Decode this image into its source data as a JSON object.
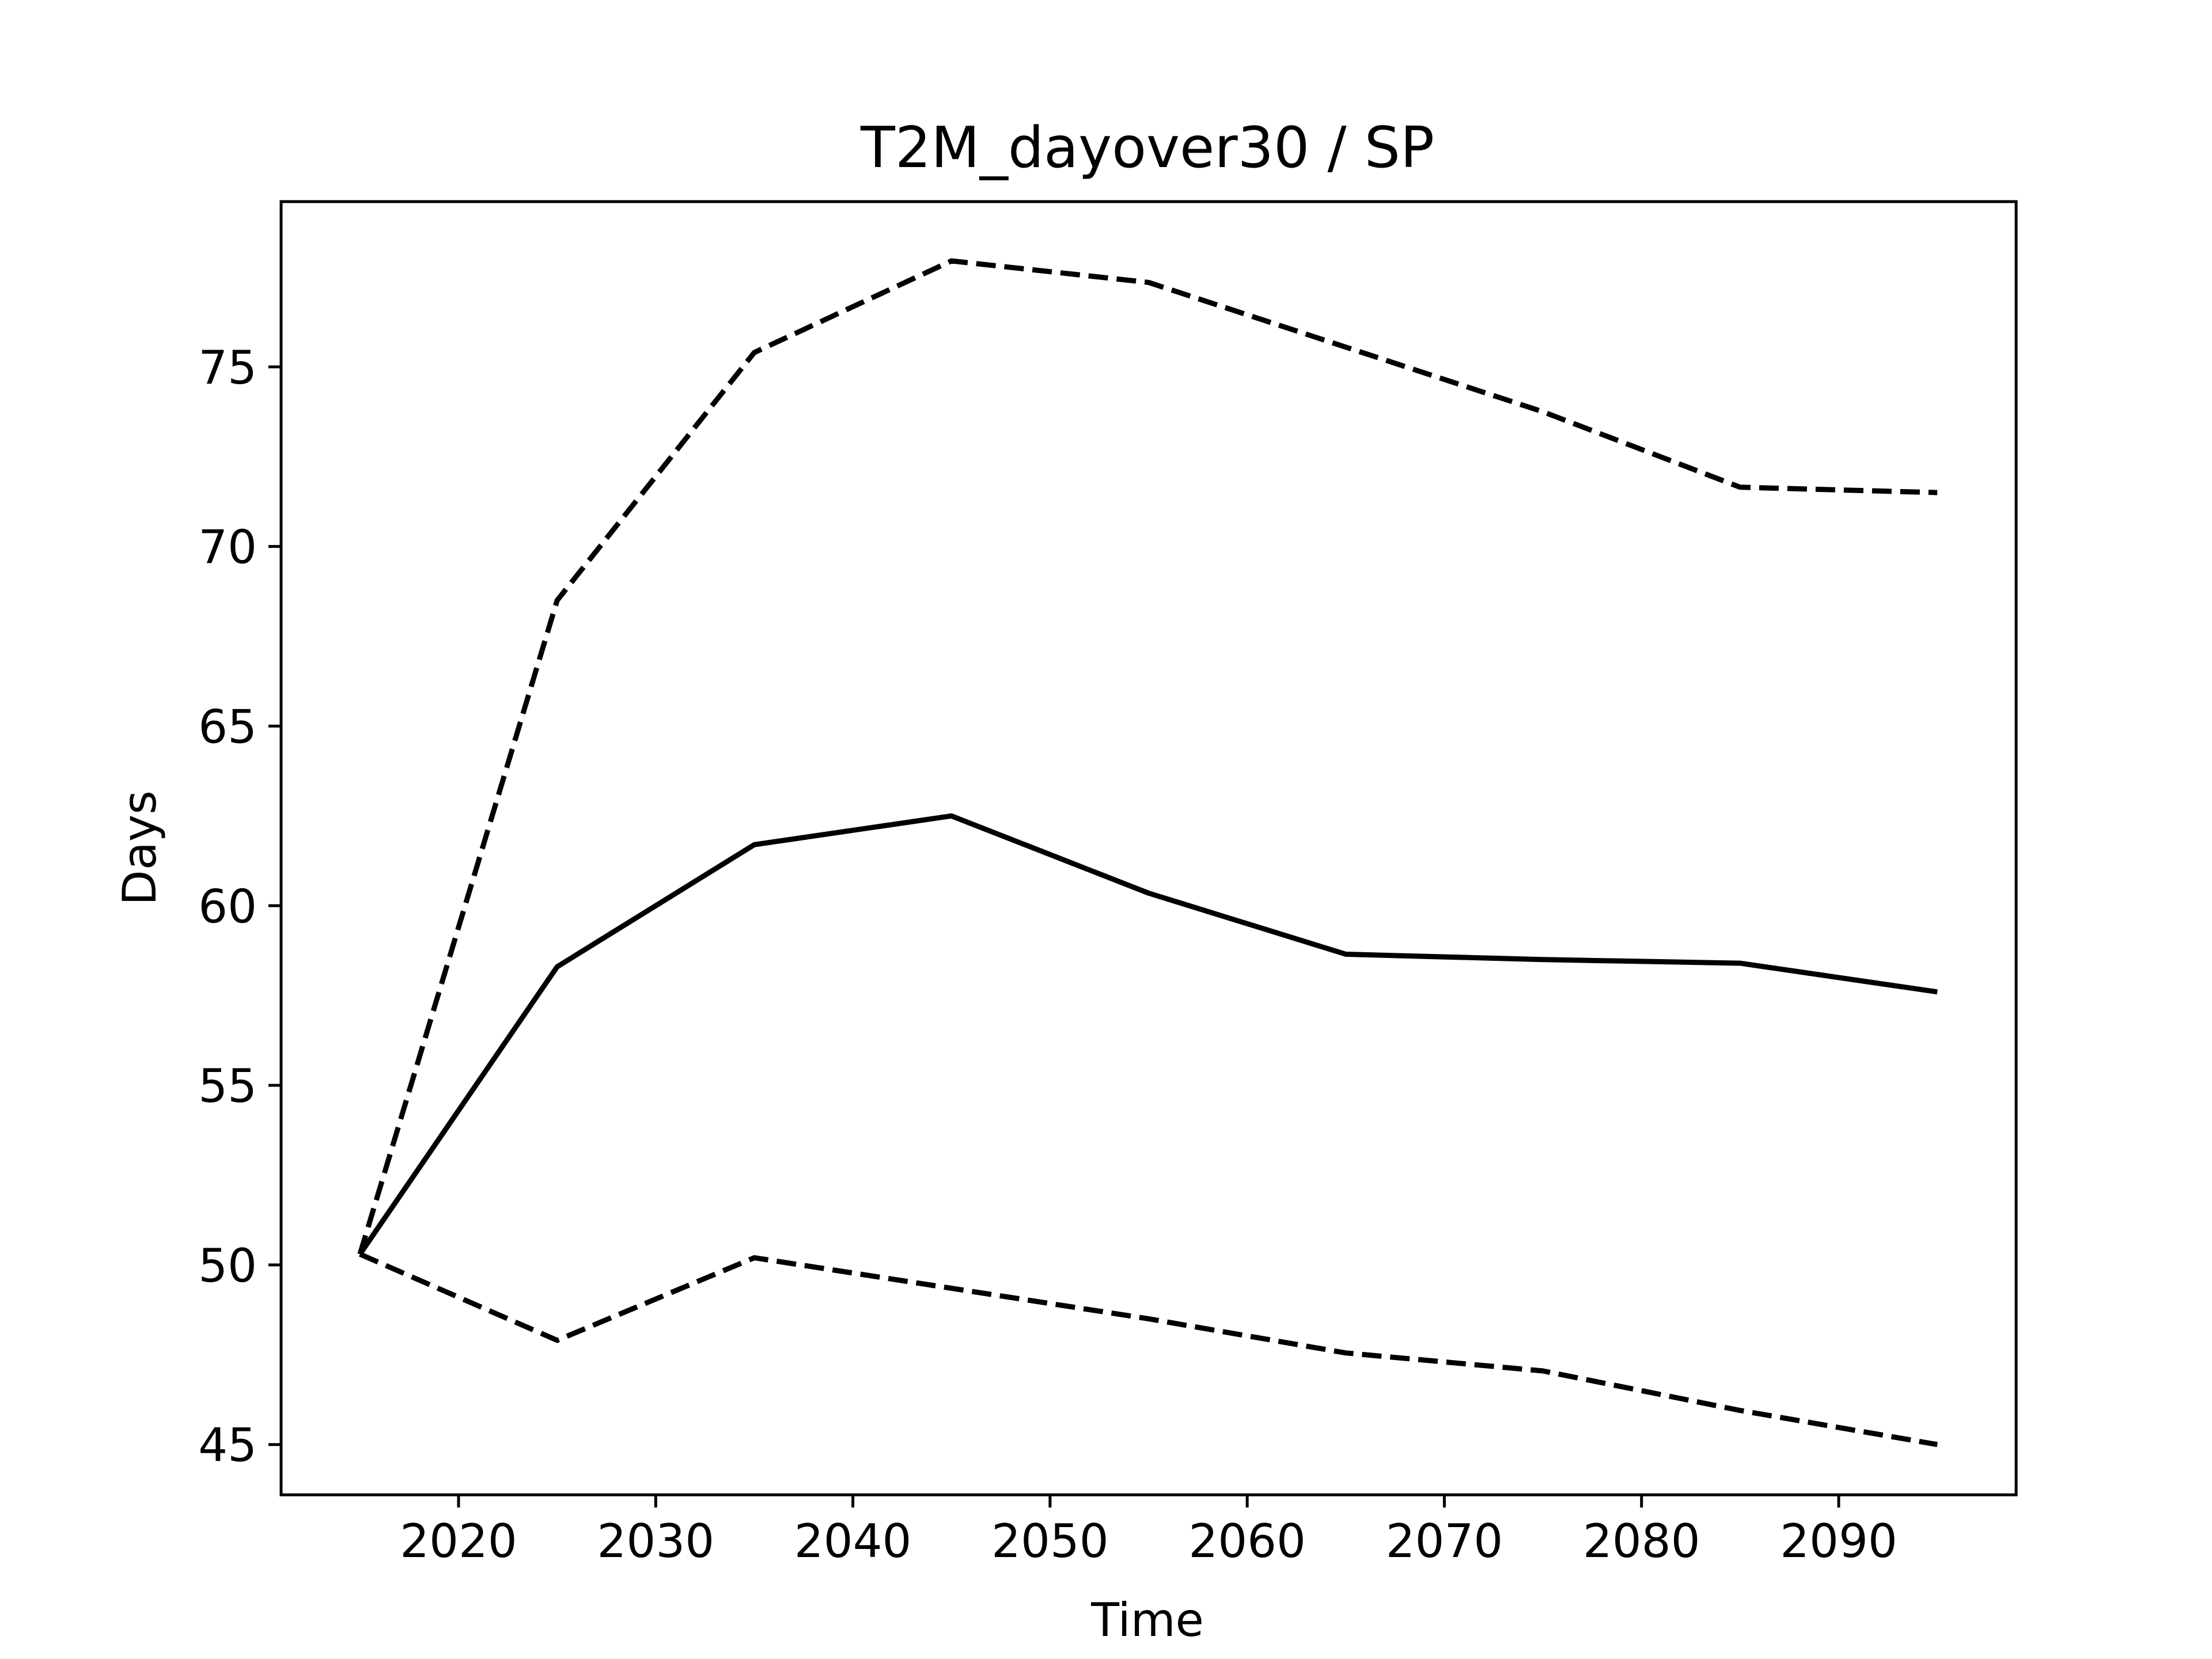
{
  "chart_data": {
    "type": "line",
    "title": "T2M_dayover30 / SP",
    "xlabel": "Time",
    "ylabel": "Days",
    "x": [
      2015,
      2025,
      2035,
      2045,
      2055,
      2065,
      2075,
      2085,
      2095
    ],
    "xlim": [
      2011,
      2099
    ],
    "ylim": [
      43.6,
      79.6
    ],
    "xticks": [
      2020,
      2030,
      2040,
      2050,
      2060,
      2070,
      2080,
      2090
    ],
    "yticks": [
      45,
      50,
      55,
      60,
      65,
      70,
      75
    ],
    "grid": false,
    "series": [
      {
        "style": "dashed",
        "color": "#000000",
        "values": [
          50.3,
          68.5,
          75.4,
          77.95,
          77.35,
          75.55,
          73.75,
          71.65,
          71.5
        ]
      },
      {
        "style": "solid",
        "color": "#000000",
        "values": [
          50.3,
          58.3,
          61.7,
          62.5,
          60.35,
          58.65,
          58.5,
          58.4,
          57.6
        ]
      },
      {
        "style": "dashed",
        "color": "#000000",
        "values": [
          50.3,
          47.9,
          50.2,
          49.35,
          48.5,
          47.55,
          47.05,
          45.95,
          45.0
        ]
      }
    ]
  }
}
